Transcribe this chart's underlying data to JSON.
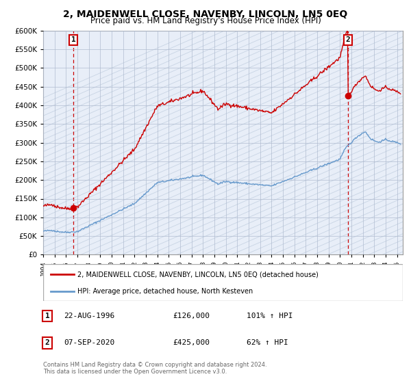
{
  "title": "2, MAIDENWELL CLOSE, NAVENBY, LINCOLN, LN5 0EQ",
  "subtitle": "Price paid vs. HM Land Registry's House Price Index (HPI)",
  "ylim": [
    0,
    600000
  ],
  "yticks": [
    0,
    50000,
    100000,
    150000,
    200000,
    250000,
    300000,
    350000,
    400000,
    450000,
    500000,
    550000,
    600000
  ],
  "xlim_start": 1994.0,
  "xlim_end": 2025.5,
  "sale1_date": 1996.64,
  "sale1_price": 126000,
  "sale1_label": "1",
  "sale2_date": 2020.68,
  "sale2_price": 425000,
  "sale2_label": "2",
  "legend_line1": "2, MAIDENWELL CLOSE, NAVENBY, LINCOLN, LN5 0EQ (detached house)",
  "legend_line2": "HPI: Average price, detached house, North Kesteven",
  "table_row1": [
    "1",
    "22-AUG-1996",
    "£126,000",
    "101% ↑ HPI"
  ],
  "table_row2": [
    "2",
    "07-SEP-2020",
    "£425,000",
    "62% ↑ HPI"
  ],
  "footer1": "Contains HM Land Registry data © Crown copyright and database right 2024.",
  "footer2": "This data is licensed under the Open Government Licence v3.0.",
  "red_color": "#cc0000",
  "blue_color": "#6699cc",
  "bg_color": "#e8eef8",
  "grid_color": "#b0bcd0",
  "hatch_color": "#c8d4e4",
  "white": "#ffffff"
}
